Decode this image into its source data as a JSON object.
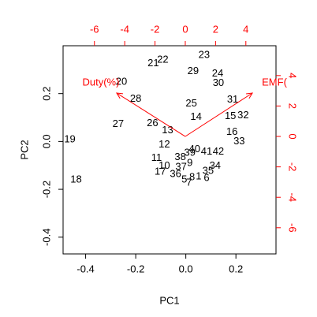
{
  "chart_data": {
    "type": "biplot",
    "x_label": "PC1",
    "y_label": "PC2",
    "xlim": [
      -0.49,
      0.36
    ],
    "ylim": [
      -0.47,
      0.4
    ],
    "xticks": [
      -0.4,
      -0.2,
      {
        "value": 0,
        "label": "0.0"
      },
      0.2
    ],
    "yticks": [
      -0.4,
      -0.2,
      {
        "value": 0,
        "label": "0.0"
      },
      0.2
    ],
    "x2lim": [
      -8.07,
      5.99
    ],
    "y2lim": [
      -7.72,
      5.96
    ],
    "x2ticks": [
      -6,
      -4,
      -2,
      0,
      2,
      4
    ],
    "y2ticks": [
      -6,
      -4,
      -2,
      0,
      2,
      4
    ],
    "point_color": "#000000",
    "arrow_color": "#ff0000",
    "points": {
      "labels": [
        "19",
        "18",
        "20",
        "28",
        "27",
        "26",
        "21",
        "22",
        "23",
        "29",
        "24",
        "30",
        "25",
        "14",
        "31",
        "15",
        "32",
        "16",
        "33",
        "13",
        "12",
        "11",
        "38",
        "40",
        "39",
        "41",
        "42",
        "10",
        "9",
        "37",
        "17",
        "34",
        "36",
        "35",
        "8",
        "5",
        "7",
        "1",
        "6"
      ],
      "x": [
        -0.463,
        -0.438,
        -0.257,
        -0.2,
        -0.27,
        -0.133,
        -0.13,
        -0.092,
        0.073,
        0.029,
        0.127,
        0.13,
        0.022,
        0.041,
        0.187,
        0.178,
        0.229,
        0.184,
        0.213,
        -0.073,
        -0.086,
        -0.117,
        -0.022,
        0.035,
        0.016,
        0.083,
        0.13,
        -0.086,
        0.016,
        -0.019,
        -0.102,
        0.117,
        -0.041,
        0.089,
        0.025,
        -0.006,
        0.013,
        0.051,
        0.083
      ],
      "y": [
        0.007,
        -0.161,
        0.249,
        0.177,
        0.072,
        0.075,
        0.325,
        0.341,
        0.361,
        0.292,
        0.282,
        0.243,
        0.157,
        0.102,
        0.174,
        0.105,
        0.108,
        0.039,
        0.0,
        0.046,
        -0.013,
        -0.069,
        -0.066,
        -0.033,
        -0.049,
        -0.043,
        -0.043,
        -0.102,
        -0.092,
        -0.108,
        -0.128,
        -0.102,
        -0.138,
        -0.125,
        -0.151,
        -0.161,
        -0.174,
        -0.148,
        -0.154
      ]
    },
    "arrows": [
      {
        "name": "Duty(%)",
        "x": -4.53,
        "y": 2.85
      },
      {
        "name": "EMF(",
        "x": 4.43,
        "y": 2.85
      }
    ]
  }
}
